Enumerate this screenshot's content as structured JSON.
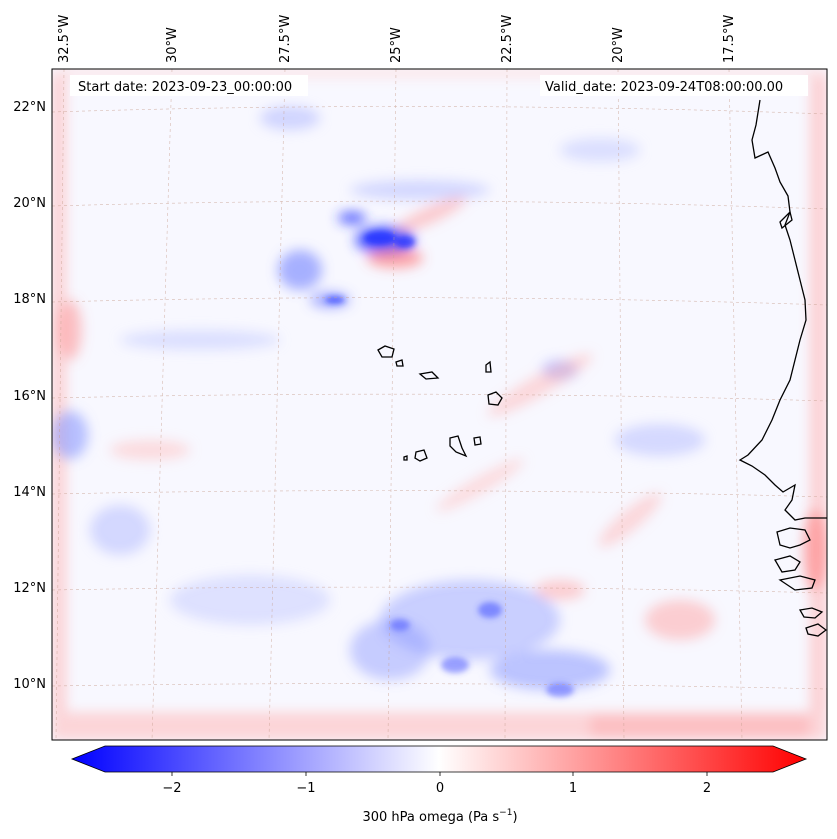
{
  "map": {
    "start_label": "Start date: 2023-09-23_00:00:00",
    "valid_label": "Valid_date: 2023-09-24T08:00:00.00",
    "lon_ticks": [
      "32.5°W",
      "30°W",
      "27.5°W",
      "25°W",
      "22.5°W",
      "20°W",
      "17.5°W"
    ],
    "lat_ticks": [
      "22°N",
      "20°N",
      "18°N",
      "16°N",
      "14°N",
      "12°N",
      "10°N"
    ],
    "colormap": "bwr",
    "colors": {
      "negative": "#0000ff",
      "zero": "#ffffff",
      "positive": "#ff0000",
      "coastline": "#000000",
      "gridline": "#c8a090"
    }
  },
  "colorbar": {
    "ticks": [
      "−2",
      "−1",
      "0",
      "1",
      "2"
    ],
    "label_main": "300 hPa omega (Pa s",
    "label_sup": "−1",
    "label_end": ")",
    "range": [
      -2.6,
      2.6
    ],
    "extend": "both"
  }
}
